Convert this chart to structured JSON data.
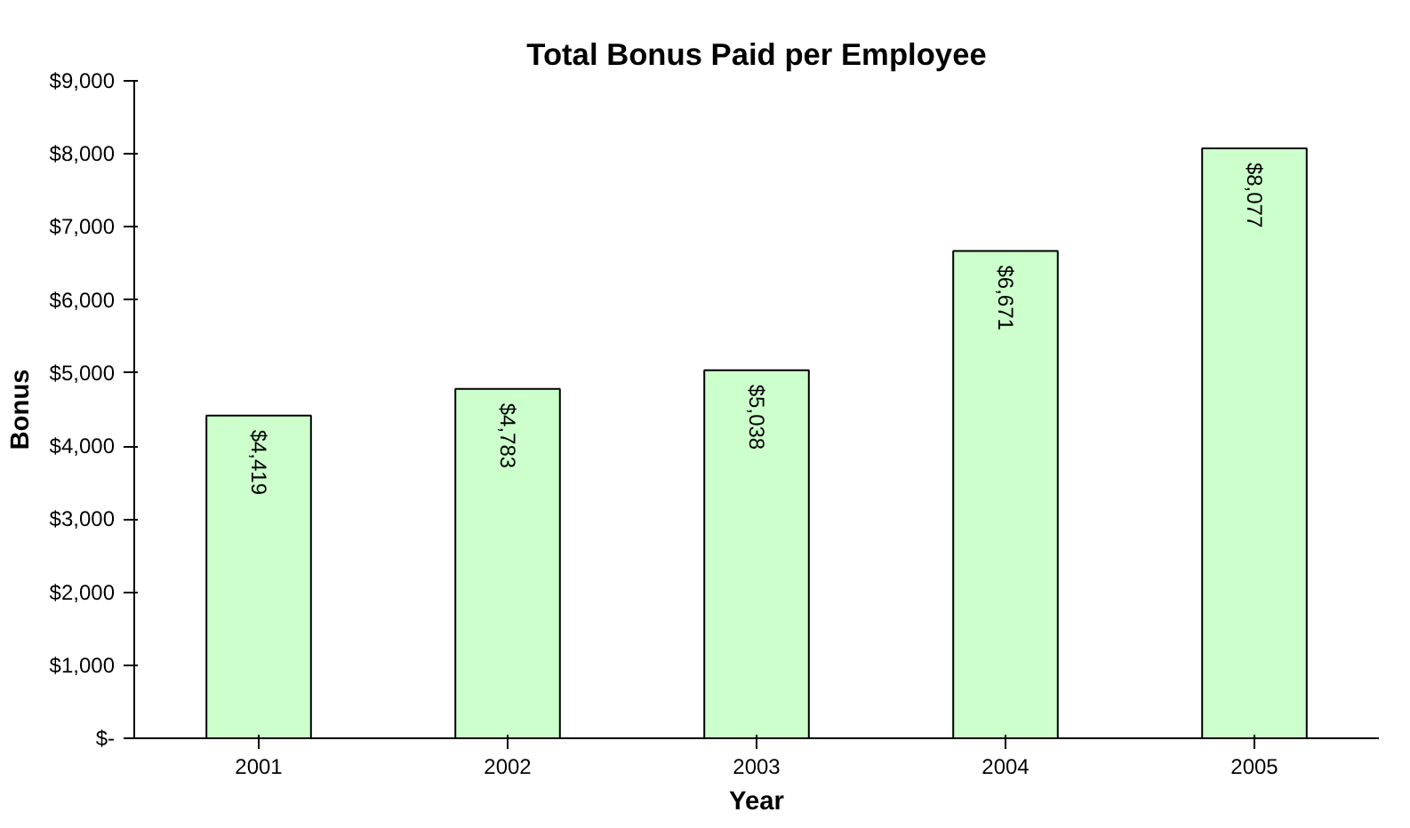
{
  "chart_data": {
    "type": "bar",
    "title": "Total Bonus Paid per Employee",
    "xlabel": "Year",
    "ylabel": "Bonus",
    "categories": [
      "2001",
      "2002",
      "2003",
      "2004",
      "2005"
    ],
    "values": [
      4419,
      4783,
      5038,
      6671,
      8077
    ],
    "value_labels": [
      "$4,419",
      "$4,783",
      "$5,038",
      "$6,671",
      "$8,077"
    ],
    "color": "#ccffcc",
    "ylim": [
      0,
      9000
    ],
    "yticks": [
      {
        "value": 0,
        "label": "$-"
      },
      {
        "value": 1000,
        "label": "$1,000"
      },
      {
        "value": 2000,
        "label": "$2,000"
      },
      {
        "value": 3000,
        "label": "$3,000"
      },
      {
        "value": 4000,
        "label": "$4,000"
      },
      {
        "value": 5000,
        "label": "$5,000"
      },
      {
        "value": 6000,
        "label": "$6,000"
      },
      {
        "value": 7000,
        "label": "$7,000"
      },
      {
        "value": 8000,
        "label": "$8,000"
      },
      {
        "value": 9000,
        "label": "$9,000"
      }
    ],
    "grid": false
  }
}
